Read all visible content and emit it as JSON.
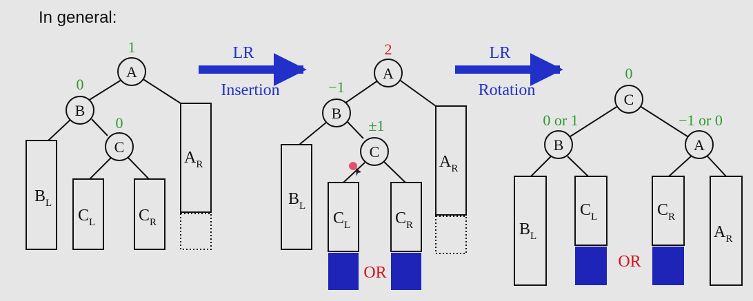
{
  "heading": "In general:",
  "colors": {
    "balance": "#2e9a2e",
    "unbalanced": "#d0141e",
    "arrow": "#2130c8",
    "or": "#d0141e",
    "height_block": "#1f24b8"
  },
  "arrows": [
    {
      "top": "LR",
      "bottom": "Insertion"
    },
    {
      "top": "LR",
      "bottom": "Rotation"
    }
  ],
  "stage1": {
    "nodes": [
      {
        "label": "A",
        "bf": "1"
      },
      {
        "label": "B",
        "bf": "0"
      },
      {
        "label": "C",
        "bf": "0"
      }
    ],
    "subtrees": [
      {
        "main": "B",
        "sub": "L"
      },
      {
        "main": "C",
        "sub": "L"
      },
      {
        "main": "C",
        "sub": "R"
      },
      {
        "main": "A",
        "sub": "R"
      }
    ]
  },
  "stage2": {
    "nodes": [
      {
        "label": "A",
        "bf": "2"
      },
      {
        "label": "B",
        "bf": "−1"
      },
      {
        "label": "C",
        "bf": "±1"
      }
    ],
    "subtrees": [
      {
        "main": "B",
        "sub": "L"
      },
      {
        "main": "C",
        "sub": "L"
      },
      {
        "main": "C",
        "sub": "R"
      },
      {
        "main": "A",
        "sub": "R"
      }
    ],
    "or_label": "OR"
  },
  "stage3": {
    "nodes": [
      {
        "label": "C",
        "bf": "0"
      },
      {
        "label": "B",
        "bf": "0 or 1"
      },
      {
        "label": "A",
        "bf": "−1 or 0"
      }
    ],
    "subtrees": [
      {
        "main": "B",
        "sub": "L"
      },
      {
        "main": "C",
        "sub": "L"
      },
      {
        "main": "C",
        "sub": "R"
      },
      {
        "main": "A",
        "sub": "R"
      }
    ],
    "or_label": "OR"
  }
}
